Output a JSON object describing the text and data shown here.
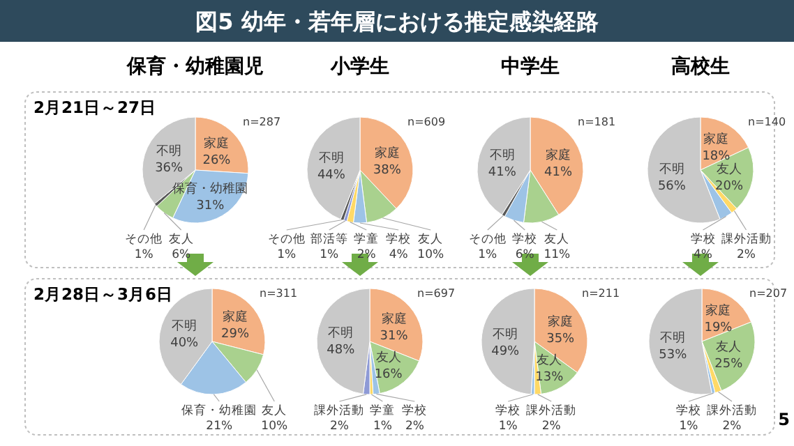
{
  "chart_data": [
    {
      "type": "other",
      "title": "図5 幼年・若年層における推定感染経路",
      "annotations": [
        "5"
      ]
    },
    {
      "type": "pie",
      "title": "保育・幼稚園児",
      "subtitle": "2月21日～27日",
      "annotations": [
        "n=287"
      ],
      "categories": [
        "家庭",
        "保育・幼稚園",
        "友人",
        "その他",
        "不明"
      ],
      "values": [
        26,
        31,
        6,
        1,
        36
      ],
      "value_labels": [
        "26%",
        "31%",
        "6%",
        "1%",
        "36%"
      ],
      "colors": [
        "#f4b183",
        "#9dc3e6",
        "#a9d18e",
        "#595959",
        "#c9c9c9"
      ]
    },
    {
      "type": "pie",
      "title": "小学生",
      "annotations": [
        "n=609"
      ],
      "categories": [
        "家庭",
        "友人",
        "学校",
        "学童",
        "部活等",
        "その他",
        "不明"
      ],
      "values": [
        38,
        10,
        4,
        2,
        1,
        1,
        44
      ],
      "value_labels": [
        "38%",
        "10%",
        "4%",
        "2%",
        "1%",
        "1%",
        "44%"
      ],
      "colors": [
        "#f4b183",
        "#a9d18e",
        "#9dc3e6",
        "#ffd966",
        "#8e9ad6",
        "#595959",
        "#c9c9c9"
      ]
    },
    {
      "type": "pie",
      "title": "中学生",
      "annotations": [
        "n=181"
      ],
      "categories": [
        "家庭",
        "友人",
        "学校",
        "その他",
        "不明"
      ],
      "values": [
        41,
        11,
        6,
        1,
        41
      ],
      "value_labels": [
        "41%",
        "11%",
        "6%",
        "1%",
        "41%"
      ],
      "colors": [
        "#f4b183",
        "#a9d18e",
        "#9dc3e6",
        "#595959",
        "#c9c9c9"
      ]
    },
    {
      "type": "pie",
      "title": "高校生",
      "annotations": [
        "n=140"
      ],
      "categories": [
        "家庭",
        "友人",
        "課外活動",
        "学校",
        "不明"
      ],
      "values": [
        18,
        20,
        2,
        4,
        56
      ],
      "value_labels": [
        "18%",
        "20%",
        "2%",
        "4%",
        "56%"
      ],
      "colors": [
        "#f4b183",
        "#a9d18e",
        "#ffd966",
        "#9dc3e6",
        "#c9c9c9"
      ]
    },
    {
      "type": "pie",
      "subtitle": "2月28日～3月6日",
      "annotations": [
        "n=311"
      ],
      "categories": [
        "家庭",
        "友人",
        "保育・幼稚園",
        "不明"
      ],
      "values": [
        29,
        10,
        21,
        40
      ],
      "value_labels": [
        "29%",
        "10%",
        "21%",
        "40%"
      ],
      "colors": [
        "#f4b183",
        "#a9d18e",
        "#9dc3e6",
        "#c9c9c9"
      ]
    },
    {
      "type": "pie",
      "annotations": [
        "n=697"
      ],
      "categories": [
        "家庭",
        "友人",
        "学校",
        "学童",
        "課外活動",
        "不明"
      ],
      "values": [
        31,
        16,
        2,
        1,
        2,
        48
      ],
      "value_labels": [
        "31%",
        "16%",
        "2%",
        "1%",
        "2%",
        "48%"
      ],
      "colors": [
        "#f4b183",
        "#a9d18e",
        "#9dc3e6",
        "#ffd966",
        "#8e9ad6",
        "#c9c9c9"
      ]
    },
    {
      "type": "pie",
      "annotations": [
        "n=211"
      ],
      "categories": [
        "家庭",
        "友人",
        "課外活動",
        "学校",
        "不明"
      ],
      "values": [
        35,
        13,
        2,
        1,
        49
      ],
      "value_labels": [
        "35%",
        "13%",
        "2%",
        "1%",
        "49%"
      ],
      "colors": [
        "#f4b183",
        "#a9d18e",
        "#ffd966",
        "#9dc3e6",
        "#c9c9c9"
      ]
    },
    {
      "type": "pie",
      "annotations": [
        "n=207"
      ],
      "categories": [
        "家庭",
        "友人",
        "課外活動",
        "学校",
        "不明"
      ],
      "values": [
        19,
        25,
        2,
        1,
        53
      ],
      "value_labels": [
        "19%",
        "25%",
        "2%",
        "1%",
        "53%"
      ],
      "colors": [
        "#f4b183",
        "#a9d18e",
        "#ffd966",
        "#9dc3e6",
        "#c9c9c9"
      ]
    }
  ]
}
